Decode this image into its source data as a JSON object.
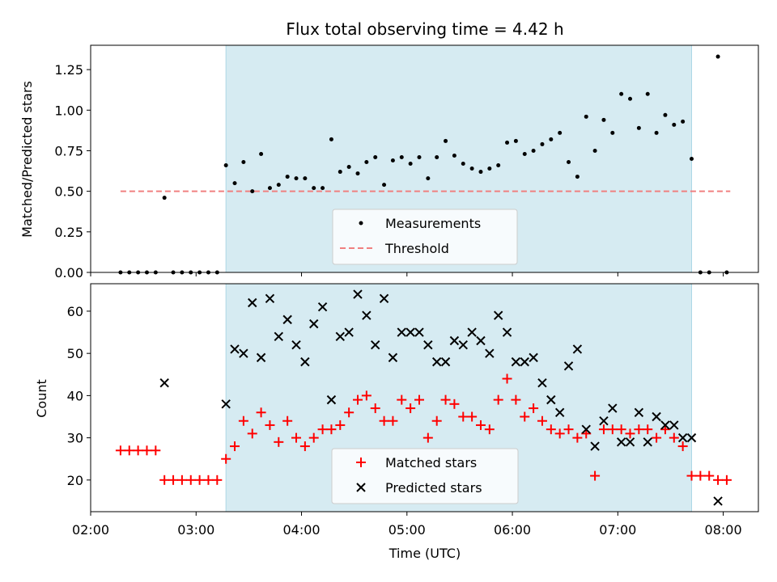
{
  "chart_data": [
    {
      "type": "scatter",
      "title": "Flux total observing time = 4.42 h",
      "xlabel": "",
      "ylabel": "Matched/Predicted stars",
      "xlim": [
        "02:00",
        "08:20"
      ],
      "ylim": [
        0,
        1.4
      ],
      "yticks": [
        "0.00",
        "0.25",
        "0.50",
        "0.75",
        "1.00",
        "1.25"
      ],
      "shaded_span": {
        "from": "03:17",
        "to": "07:42",
        "color": "#add8e6"
      },
      "threshold": {
        "name": "Threshold",
        "value": 0.5,
        "from": "02:17",
        "to": "08:04",
        "color": "#f08080"
      },
      "legend": [
        "Measurements",
        "Threshold"
      ],
      "series": [
        {
          "name": "Measurements",
          "marker": "dot",
          "color": "#000000",
          "points": [
            [
              "02:17",
              0
            ],
            [
              "02:22",
              0
            ],
            [
              "02:27",
              0
            ],
            [
              "02:32",
              0
            ],
            [
              "02:37",
              0
            ],
            [
              "02:42",
              0.46
            ],
            [
              "02:47",
              0
            ],
            [
              "02:52",
              0
            ],
            [
              "02:57",
              0
            ],
            [
              "03:02",
              0
            ],
            [
              "03:07",
              0
            ],
            [
              "03:12",
              0
            ],
            [
              "03:17",
              0.66
            ],
            [
              "03:22",
              0.55
            ],
            [
              "03:27",
              0.68
            ],
            [
              "03:32",
              0.5
            ],
            [
              "03:37",
              0.73
            ],
            [
              "03:42",
              0.52
            ],
            [
              "03:47",
              0.54
            ],
            [
              "03:52",
              0.59
            ],
            [
              "03:57",
              0.58
            ],
            [
              "04:02",
              0.58
            ],
            [
              "04:07",
              0.52
            ],
            [
              "04:12",
              0.52
            ],
            [
              "04:17",
              0.82
            ],
            [
              "04:22",
              0.62
            ],
            [
              "04:27",
              0.65
            ],
            [
              "04:32",
              0.61
            ],
            [
              "04:37",
              0.68
            ],
            [
              "04:42",
              0.71
            ],
            [
              "04:47",
              0.54
            ],
            [
              "04:52",
              0.69
            ],
            [
              "04:57",
              0.71
            ],
            [
              "05:02",
              0.67
            ],
            [
              "05:07",
              0.71
            ],
            [
              "05:12",
              0.58
            ],
            [
              "05:17",
              0.71
            ],
            [
              "05:22",
              0.81
            ],
            [
              "05:27",
              0.72
            ],
            [
              "05:32",
              0.67
            ],
            [
              "05:37",
              0.64
            ],
            [
              "05:42",
              0.62
            ],
            [
              "05:47",
              0.64
            ],
            [
              "05:52",
              0.66
            ],
            [
              "05:57",
              0.8
            ],
            [
              "06:02",
              0.81
            ],
            [
              "06:07",
              0.73
            ],
            [
              "06:12",
              0.75
            ],
            [
              "06:17",
              0.79
            ],
            [
              "06:22",
              0.82
            ],
            [
              "06:27",
              0.86
            ],
            [
              "06:32",
              0.68
            ],
            [
              "06:37",
              0.59
            ],
            [
              "06:42",
              0.96
            ],
            [
              "06:47",
              0.75
            ],
            [
              "06:52",
              0.94
            ],
            [
              "06:57",
              0.86
            ],
            [
              "07:02",
              1.1
            ],
            [
              "07:07",
              1.07
            ],
            [
              "07:12",
              0.89
            ],
            [
              "07:17",
              1.1
            ],
            [
              "07:22",
              0.86
            ],
            [
              "07:27",
              0.97
            ],
            [
              "07:32",
              0.91
            ],
            [
              "07:37",
              0.93
            ],
            [
              "07:42",
              0.7
            ],
            [
              "07:47",
              0
            ],
            [
              "07:52",
              0
            ],
            [
              "07:57",
              1.33
            ],
            [
              "08:02",
              0
            ]
          ]
        }
      ]
    },
    {
      "type": "scatter",
      "title": "",
      "xlabel": "Time (UTC)",
      "ylabel": "Count",
      "xlim": [
        "02:00",
        "08:20"
      ],
      "ylim": [
        12.5,
        66.5
      ],
      "xticks": [
        "02:00",
        "03:00",
        "04:00",
        "05:00",
        "06:00",
        "07:00",
        "08:00"
      ],
      "yticks": [
        "20",
        "30",
        "40",
        "50",
        "60"
      ],
      "shaded_span": {
        "from": "03:17",
        "to": "07:42",
        "color": "#add8e6"
      },
      "legend": [
        "Matched stars",
        "Predicted stars"
      ],
      "series": [
        {
          "name": "Matched stars",
          "marker": "plus",
          "color": "#ff0000",
          "points": [
            [
              "02:17",
              27
            ],
            [
              "02:22",
              27
            ],
            [
              "02:27",
              27
            ],
            [
              "02:32",
              27
            ],
            [
              "02:37",
              27
            ],
            [
              "02:42",
              20
            ],
            [
              "02:47",
              20
            ],
            [
              "02:52",
              20
            ],
            [
              "02:57",
              20
            ],
            [
              "03:02",
              20
            ],
            [
              "03:07",
              20
            ],
            [
              "03:12",
              20
            ],
            [
              "03:17",
              25
            ],
            [
              "03:22",
              28
            ],
            [
              "03:27",
              34
            ],
            [
              "03:32",
              31
            ],
            [
              "03:37",
              36
            ],
            [
              "03:42",
              33
            ],
            [
              "03:47",
              29
            ],
            [
              "03:52",
              34
            ],
            [
              "03:57",
              30
            ],
            [
              "04:02",
              28
            ],
            [
              "04:07",
              30
            ],
            [
              "04:12",
              32
            ],
            [
              "04:17",
              32
            ],
            [
              "04:22",
              33
            ],
            [
              "04:27",
              36
            ],
            [
              "04:32",
              39
            ],
            [
              "04:37",
              40
            ],
            [
              "04:42",
              37
            ],
            [
              "04:47",
              34
            ],
            [
              "04:52",
              34
            ],
            [
              "04:57",
              39
            ],
            [
              "05:02",
              37
            ],
            [
              "05:07",
              39
            ],
            [
              "05:12",
              30
            ],
            [
              "05:17",
              34
            ],
            [
              "05:22",
              39
            ],
            [
              "05:27",
              38
            ],
            [
              "05:32",
              35
            ],
            [
              "05:37",
              35
            ],
            [
              "05:42",
              33
            ],
            [
              "05:47",
              32
            ],
            [
              "05:52",
              39
            ],
            [
              "05:57",
              44
            ],
            [
              "06:02",
              39
            ],
            [
              "06:07",
              35
            ],
            [
              "06:12",
              37
            ],
            [
              "06:17",
              34
            ],
            [
              "06:22",
              32
            ],
            [
              "06:27",
              31
            ],
            [
              "06:32",
              32
            ],
            [
              "06:37",
              30
            ],
            [
              "06:42",
              31
            ],
            [
              "06:47",
              21
            ],
            [
              "06:52",
              32
            ],
            [
              "06:57",
              32
            ],
            [
              "07:02",
              32
            ],
            [
              "07:07",
              31
            ],
            [
              "07:12",
              32
            ],
            [
              "07:17",
              32
            ],
            [
              "07:22",
              30
            ],
            [
              "07:27",
              32
            ],
            [
              "07:32",
              30
            ],
            [
              "07:37",
              28
            ],
            [
              "07:42",
              21
            ],
            [
              "07:47",
              21
            ],
            [
              "07:52",
              21
            ],
            [
              "07:57",
              20
            ],
            [
              "08:02",
              20
            ]
          ]
        },
        {
          "name": "Predicted stars",
          "marker": "x",
          "color": "#000000",
          "points": [
            [
              "02:42",
              43
            ],
            [
              "03:17",
              38
            ],
            [
              "03:22",
              51
            ],
            [
              "03:27",
              50
            ],
            [
              "03:32",
              62
            ],
            [
              "03:37",
              49
            ],
            [
              "03:42",
              63
            ],
            [
              "03:47",
              54
            ],
            [
              "03:52",
              58
            ],
            [
              "03:57",
              52
            ],
            [
              "04:02",
              48
            ],
            [
              "04:07",
              57
            ],
            [
              "04:12",
              61
            ],
            [
              "04:17",
              39
            ],
            [
              "04:22",
              54
            ],
            [
              "04:27",
              55
            ],
            [
              "04:32",
              64
            ],
            [
              "04:37",
              59
            ],
            [
              "04:42",
              52
            ],
            [
              "04:47",
              63
            ],
            [
              "04:52",
              49
            ],
            [
              "04:57",
              55
            ],
            [
              "05:02",
              55
            ],
            [
              "05:07",
              55
            ],
            [
              "05:12",
              52
            ],
            [
              "05:17",
              48
            ],
            [
              "05:22",
              48
            ],
            [
              "05:27",
              53
            ],
            [
              "05:32",
              52
            ],
            [
              "05:37",
              55
            ],
            [
              "05:42",
              53
            ],
            [
              "05:47",
              50
            ],
            [
              "05:52",
              59
            ],
            [
              "05:57",
              55
            ],
            [
              "06:02",
              48
            ],
            [
              "06:07",
              48
            ],
            [
              "06:12",
              49
            ],
            [
              "06:17",
              43
            ],
            [
              "06:22",
              39
            ],
            [
              "06:27",
              36
            ],
            [
              "06:32",
              47
            ],
            [
              "06:37",
              51
            ],
            [
              "06:42",
              32
            ],
            [
              "06:47",
              28
            ],
            [
              "06:52",
              34
            ],
            [
              "06:57",
              37
            ],
            [
              "07:02",
              29
            ],
            [
              "07:07",
              29
            ],
            [
              "07:12",
              36
            ],
            [
              "07:17",
              29
            ],
            [
              "07:22",
              35
            ],
            [
              "07:27",
              33
            ],
            [
              "07:32",
              33
            ],
            [
              "07:37",
              30
            ],
            [
              "07:42",
              30
            ],
            [
              "07:57",
              15
            ]
          ]
        }
      ]
    }
  ]
}
